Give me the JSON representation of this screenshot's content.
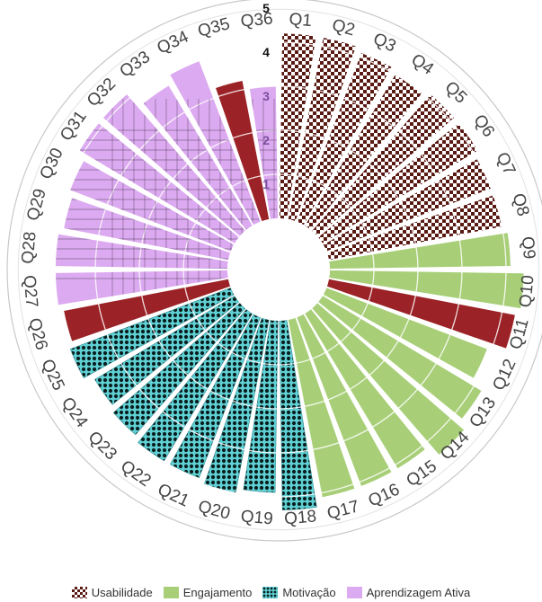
{
  "chart_data": {
    "type": "radial_bar",
    "categories": [
      "Q1",
      "Q2",
      "Q3",
      "Q4",
      "Q5",
      "Q6",
      "Q7",
      "Q8",
      "Q9",
      "Q10",
      "Q11",
      "Q12",
      "Q13",
      "Q14",
      "Q15",
      "Q16",
      "Q17",
      "Q18",
      "Q19",
      "Q20",
      "Q21",
      "Q22",
      "Q23",
      "Q24",
      "Q25",
      "Q26",
      "Q27",
      "Q28",
      "Q29",
      "Q30",
      "Q31",
      "Q32",
      "Q33",
      "Q34",
      "Q35",
      "Q36"
    ],
    "values": [
      4.2,
      4.2,
      4.1,
      4.0,
      4.1,
      4.1,
      4.0,
      4.0,
      4.1,
      4.4,
      4.3,
      3.9,
      4.2,
      4.4,
      4.1,
      4.1,
      4.1,
      4.3,
      3.9,
      4.0,
      3.9,
      3.9,
      3.8,
      3.7,
      3.9,
      3.8,
      3.9,
      3.9,
      3.8,
      3.9,
      4.1,
      4.1,
      3.7,
      3.9,
      3.2,
      3.0
    ],
    "series_index": [
      0,
      0,
      0,
      0,
      0,
      0,
      0,
      0,
      1,
      1,
      2,
      1,
      1,
      1,
      1,
      1,
      1,
      3,
      3,
      3,
      3,
      3,
      3,
      3,
      3,
      2,
      4,
      4,
      4,
      4,
      4,
      4,
      4,
      4,
      2,
      4
    ],
    "rlim": [
      0,
      5
    ],
    "radial_ticks": [
      "1",
      "2",
      "3",
      "4",
      "5"
    ],
    "legend": {
      "position": "bottom",
      "items": [
        "Usabilidade",
        "Engajamento",
        "Motivação",
        "Aprendizagem Ativa"
      ]
    },
    "colors": {
      "usabilidade": "#5a1a14",
      "engajamento": "#a8cf78",
      "vermelho": "#9b2226",
      "motivacao": "#5fd0d4",
      "motivacao_dot": "#0b1e1e",
      "aprendizagem": "#dcaaf0",
      "grid": "#c8c8c8"
    }
  }
}
